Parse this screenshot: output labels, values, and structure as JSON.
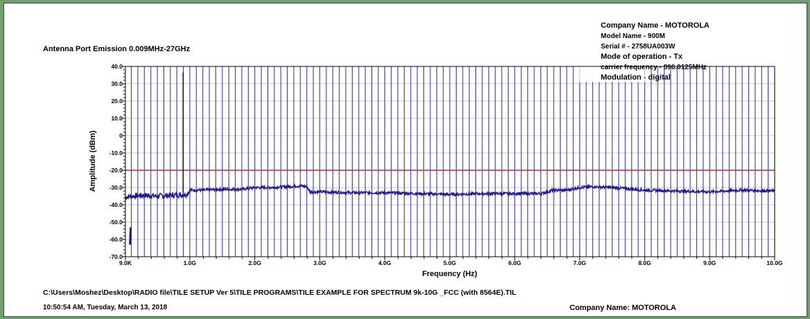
{
  "header": {
    "title": "Antenna Port Emission 0.009MHz-27GHz",
    "info": [
      "Company Name - MOTOROLA",
      "Model Name - 900M",
      "Serial # - 2758UA003W",
      "Mode of operation - Tx",
      "carrier frequency - 896.0125MHz",
      "Modulation - digital"
    ]
  },
  "footer": {
    "path": "C:\\Users\\Moshez\\Desktop\\RADIO file\\TILE SETUP Ver 5\\TILE PROGRAMS\\TILE EXAMPLE FOR SPECTRUM 9k-10G _FCC (with 8564E).TIL",
    "timestamp": "10:50:54 AM, Tuesday, March 13, 2018",
    "company": "Company Name: MOTOROLA"
  },
  "chart_data": {
    "type": "line",
    "title": "Antenna Port Emission 0.009MHz-27GHz",
    "xlabel": "Frequency (Hz)",
    "ylabel": "Amplitude (dBm)",
    "xlim": [
      0.009,
      10.0
    ],
    "ylim": [
      -70,
      40
    ],
    "x_unit": "GHz",
    "x_ticks": [
      0.009,
      1,
      2,
      3,
      4,
      5,
      6,
      7,
      8,
      9,
      10
    ],
    "x_tick_labels": [
      "9.0K",
      "1.0G",
      "2.0G",
      "3.0G",
      "4.0G",
      "5.0G",
      "6.0G",
      "7.0G",
      "8.0G",
      "9.0G",
      "10.0G"
    ],
    "y_ticks": [
      40,
      30,
      20,
      10,
      0,
      -10,
      -20,
      -30,
      -40,
      -50,
      -60,
      -70
    ],
    "y_tick_labels": [
      "40.0",
      "30.0",
      "20.0",
      "10.0",
      "0",
      "-10.0",
      "-20.0",
      "-30.0",
      "-40.0",
      "-50.0",
      "-60.0",
      "-70.0"
    ],
    "limit_line": {
      "value": -20,
      "color": "#b03030"
    },
    "trace_color": "#1a1a9a",
    "marker_line_color": "#3a3ab8",
    "grid": true,
    "trace": [
      [
        0.009,
        -35.5
      ],
      [
        0.1,
        -35
      ],
      [
        0.3,
        -34.5
      ],
      [
        0.5,
        -35
      ],
      [
        0.7,
        -34.5
      ],
      [
        0.95,
        -34
      ],
      [
        1.0,
        -31.5
      ],
      [
        1.2,
        -31.5
      ],
      [
        1.5,
        -31
      ],
      [
        1.8,
        -31
      ],
      [
        2.0,
        -30
      ],
      [
        2.2,
        -30
      ],
      [
        2.5,
        -29.5
      ],
      [
        2.7,
        -29
      ],
      [
        2.8,
        -29.5
      ],
      [
        2.85,
        -32.5
      ],
      [
        3.0,
        -32.5
      ],
      [
        3.5,
        -33
      ],
      [
        4.0,
        -33
      ],
      [
        4.5,
        -33.5
      ],
      [
        5.0,
        -34
      ],
      [
        5.5,
        -33.5
      ],
      [
        6.0,
        -33.5
      ],
      [
        6.4,
        -33.5
      ],
      [
        6.6,
        -31.5
      ],
      [
        6.8,
        -31.5
      ],
      [
        7.0,
        -30
      ],
      [
        7.2,
        -29.5
      ],
      [
        7.5,
        -30
      ],
      [
        8.0,
        -31.5
      ],
      [
        8.5,
        -32
      ],
      [
        9.0,
        -32.5
      ],
      [
        9.5,
        -31.5
      ],
      [
        10.0,
        -32
      ]
    ],
    "low_segment": [
      [
        0.08,
        -63
      ],
      [
        0.09,
        -53
      ]
    ],
    "spike": [
      0.896,
      36.5
    ]
  }
}
